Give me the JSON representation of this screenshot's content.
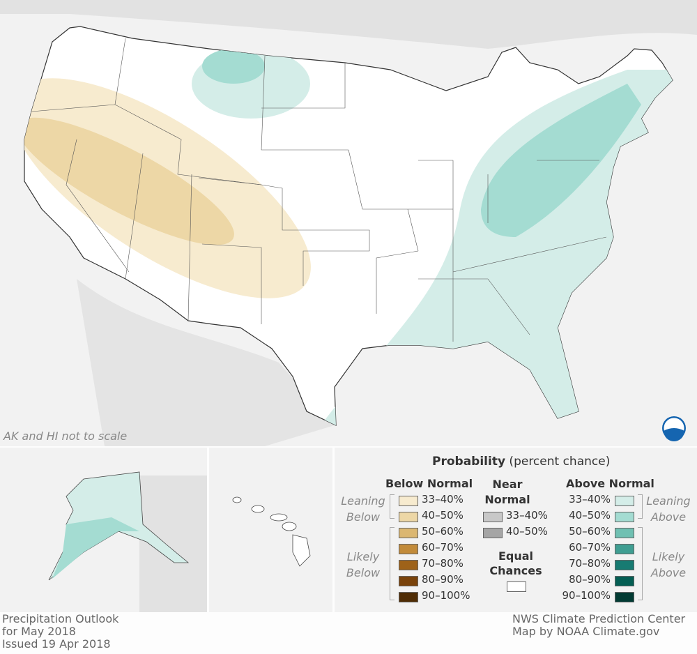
{
  "map": {
    "note": "AK and HI not to scale",
    "logo": "NOAA"
  },
  "legend": {
    "title_bold": "Probability",
    "title_rest": " (percent chance)",
    "below": {
      "heading": "Below Normal",
      "leaning": "Leaning Below",
      "likely": "Likely Below",
      "items": [
        {
          "label": "33–40%",
          "color": "#f7ebcf"
        },
        {
          "label": "40–50%",
          "color": "#edd7a6"
        },
        {
          "label": "50–60%",
          "color": "#dbb771"
        },
        {
          "label": "60–70%",
          "color": "#c28b3a"
        },
        {
          "label": "70–80%",
          "color": "#9e6219"
        },
        {
          "label": "80–90%",
          "color": "#7a430b"
        },
        {
          "label": "90–100%",
          "color": "#4f2c05"
        }
      ]
    },
    "near": {
      "heading_1": "Near",
      "heading_2": "Normal",
      "items": [
        {
          "label": "33–40%",
          "color": "#c8c8c8"
        },
        {
          "label": "40–50%",
          "color": "#a5a5a5"
        }
      ]
    },
    "equal": {
      "heading_1": "Equal",
      "heading_2": "Chances",
      "color": "#ffffff"
    },
    "above": {
      "heading": "Above Normal",
      "leaning": "Leaning Above",
      "likely": "Likely Above",
      "items": [
        {
          "label": "33–40%",
          "color": "#d4ede8"
        },
        {
          "label": "40–50%",
          "color": "#a4dcd2"
        },
        {
          "label": "50–60%",
          "color": "#6fc0b2"
        },
        {
          "label": "60–70%",
          "color": "#3f9e92"
        },
        {
          "label": "70–80%",
          "color": "#177b72"
        },
        {
          "label": "80–90%",
          "color": "#045e53"
        },
        {
          "label": "90–100%",
          "color": "#023b33"
        }
      ]
    }
  },
  "footer": {
    "left": [
      "Precipitation Outlook",
      "for May 2018",
      "Issued 19 Apr 2018"
    ],
    "right": [
      "NWS Climate Prediction Center",
      "Map by NOAA Climate.gov"
    ]
  }
}
